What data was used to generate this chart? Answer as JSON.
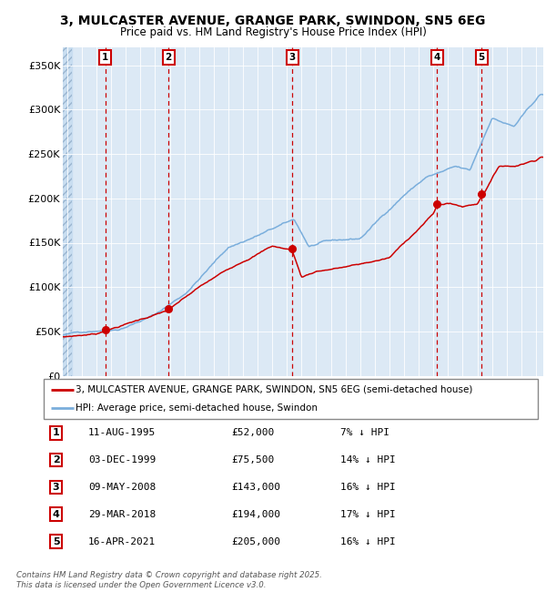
{
  "title_line1": "3, MULCASTER AVENUE, GRANGE PARK, SWINDON, SN5 6EG",
  "title_line2": "Price paid vs. HM Land Registry's House Price Index (HPI)",
  "ylabel_ticks": [
    "£0",
    "£50K",
    "£100K",
    "£150K",
    "£200K",
    "£250K",
    "£300K",
    "£350K"
  ],
  "ytick_values": [
    0,
    50000,
    100000,
    150000,
    200000,
    250000,
    300000,
    350000
  ],
  "ylim": [
    0,
    370000
  ],
  "xlim_start": 1992.7,
  "xlim_end": 2025.5,
  "sale_dates": [
    1995.61,
    1999.92,
    2008.36,
    2018.25,
    2021.29
  ],
  "sale_prices": [
    52000,
    75500,
    143000,
    194000,
    205000
  ],
  "sale_labels": [
    "1",
    "2",
    "3",
    "4",
    "5"
  ],
  "sale_info": [
    [
      "1",
      "11-AUG-1995",
      "£52,000",
      "7% ↓ HPI"
    ],
    [
      "2",
      "03-DEC-1999",
      "£75,500",
      "14% ↓ HPI"
    ],
    [
      "3",
      "09-MAY-2008",
      "£143,000",
      "16% ↓ HPI"
    ],
    [
      "4",
      "29-MAR-2018",
      "£194,000",
      "17% ↓ HPI"
    ],
    [
      "5",
      "16-APR-2021",
      "£205,000",
      "16% ↓ HPI"
    ]
  ],
  "plot_bg_color": "#dce9f5",
  "vline_color": "#cc0000",
  "price_color": "#cc0000",
  "hpi_line_color": "#7aaedc",
  "footer_text": "Contains HM Land Registry data © Crown copyright and database right 2025.\nThis data is licensed under the Open Government Licence v3.0.",
  "legend_label_red": "3, MULCASTER AVENUE, GRANGE PARK, SWINDON, SN5 6EG (semi-detached house)",
  "legend_label_blue": "HPI: Average price, semi-detached house, Swindon"
}
